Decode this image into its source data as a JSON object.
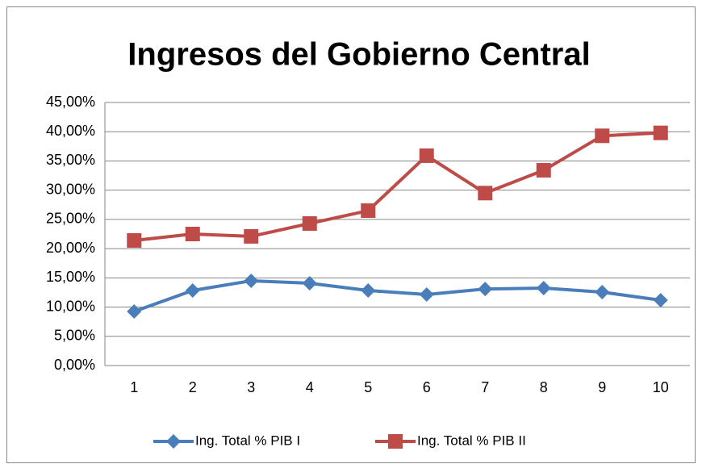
{
  "chart_data": {
    "type": "line",
    "title": "Ingresos del Gobierno Central",
    "categories": [
      "1",
      "2",
      "3",
      "4",
      "5",
      "6",
      "7",
      "8",
      "9",
      "10"
    ],
    "series": [
      {
        "name": "Ing. Total % PIB I",
        "color": "#4a7ebb",
        "marker": "diamond",
        "values": [
          9.25,
          12.84,
          14.5,
          14.08,
          12.84,
          12.15,
          13.1,
          13.25,
          12.56,
          11.18
        ]
      },
      {
        "name": "Ing. Total % PIB II",
        "color": "#be4b48",
        "marker": "square",
        "values": [
          21.4,
          22.5,
          22.1,
          24.3,
          26.5,
          35.9,
          29.5,
          33.4,
          39.3,
          39.8
        ]
      }
    ],
    "ylim": [
      0,
      45
    ],
    "yticks": [
      {
        "value": 0,
        "label": "0,00%"
      },
      {
        "value": 5,
        "label": "5,00%"
      },
      {
        "value": 10,
        "label": "10,00%"
      },
      {
        "value": 15,
        "label": "15,00%"
      },
      {
        "value": 20,
        "label": "20,00%"
      },
      {
        "value": 25,
        "label": "25,00%"
      },
      {
        "value": 30,
        "label": "30,00%"
      },
      {
        "value": 35,
        "label": "35,00%"
      },
      {
        "value": 40,
        "label": "40,00%"
      },
      {
        "value": 45,
        "label": "45,00%"
      }
    ],
    "grid": true,
    "legend": "bottom"
  }
}
